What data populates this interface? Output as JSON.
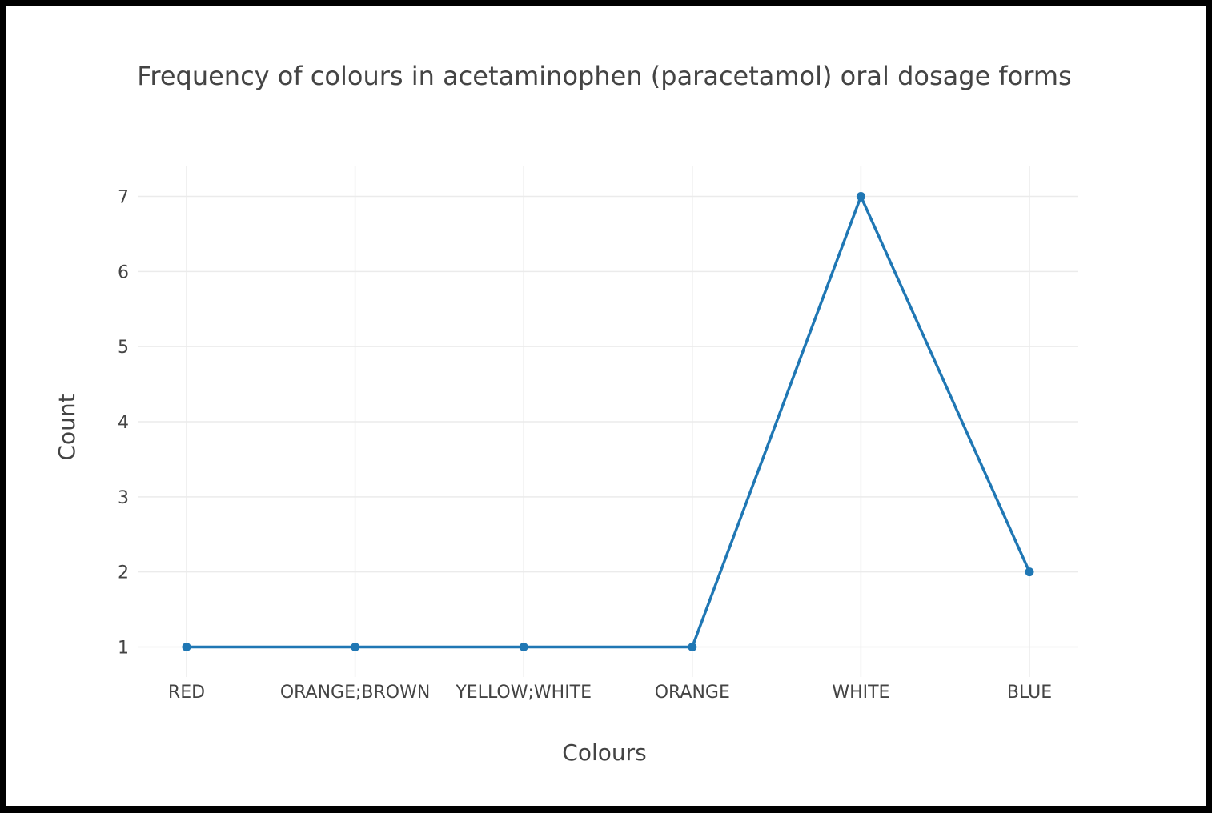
{
  "chart_data": {
    "type": "line",
    "title": "Frequency of colours in acetaminophen (paracetamol) oral dosage forms",
    "xlabel": "Colours",
    "ylabel": "Count",
    "categories": [
      "RED",
      "ORANGE;BROWN",
      "YELLOW;WHITE",
      "ORANGE",
      "WHITE",
      "BLUE"
    ],
    "series": [
      {
        "values": [
          1,
          1,
          1,
          1,
          7,
          2
        ]
      }
    ],
    "ylim": [
      0.6,
      7.4
    ],
    "yticks": [
      1,
      2,
      3,
      4,
      5,
      6,
      7
    ],
    "grid": true,
    "legend": "none",
    "colors": {
      "line": "#1f77b4",
      "grid": "#ebebeb",
      "text": "#444444"
    }
  }
}
